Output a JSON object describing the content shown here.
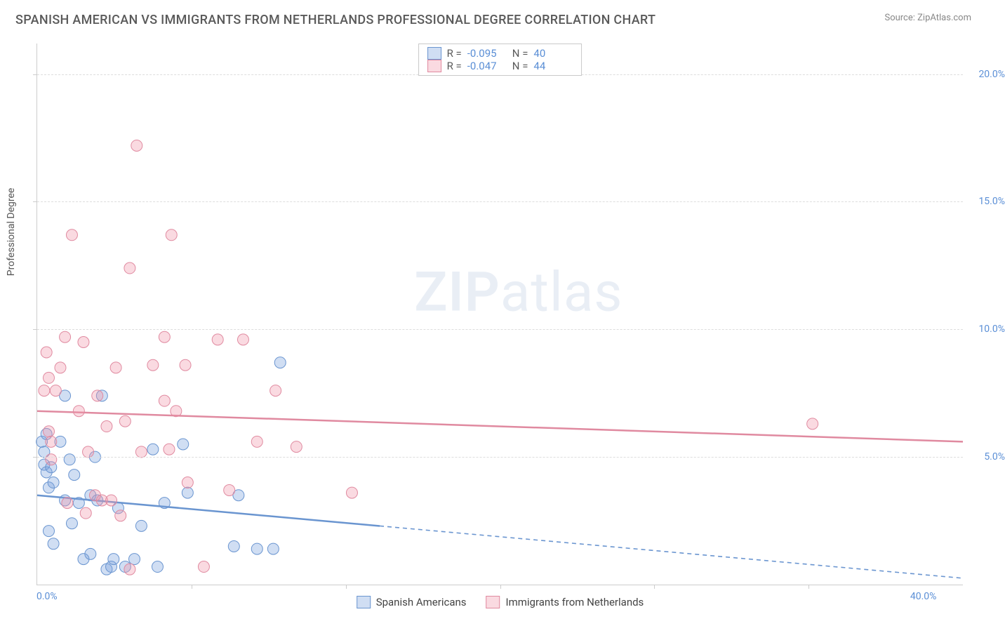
{
  "title": "SPANISH AMERICAN VS IMMIGRANTS FROM NETHERLANDS PROFESSIONAL DEGREE CORRELATION CHART",
  "source": "Source: ZipAtlas.com",
  "y_axis_label": "Professional Degree",
  "watermark_bold": "ZIP",
  "watermark_light": "atlas",
  "chart": {
    "type": "scatter",
    "xlim": [
      0,
      40
    ],
    "ylim": [
      0,
      21.2
    ],
    "x_ticks": [
      0,
      40
    ],
    "x_tick_labels": [
      "0.0%",
      "40.0%"
    ],
    "x_minor_ticks": [
      6.67,
      13.33,
      20,
      26.67,
      33.33
    ],
    "y_ticks": [
      5,
      10,
      15,
      20
    ],
    "y_tick_labels": [
      "5.0%",
      "10.0%",
      "15.0%",
      "20.0%"
    ],
    "y_minor_ticks": [
      0
    ],
    "grid_color": "#dddddd",
    "axis_color": "#cccccc",
    "background": "#ffffff",
    "series": [
      {
        "key": "spanish",
        "label": "Spanish Americans",
        "color_fill": "rgba(120,160,220,0.35)",
        "color_stroke": "#6a95d0",
        "marker_radius": 8,
        "trend": {
          "y_at_x0": 3.5,
          "y_at_xmax": 0.25,
          "solid_until_x": 14.8
        },
        "stats": {
          "R": "-0.095",
          "N": "40"
        },
        "points": [
          [
            0.2,
            5.6
          ],
          [
            0.3,
            5.2
          ],
          [
            0.3,
            4.7
          ],
          [
            0.4,
            4.4
          ],
          [
            0.4,
            5.9
          ],
          [
            0.5,
            3.8
          ],
          [
            0.6,
            4.6
          ],
          [
            0.5,
            2.1
          ],
          [
            0.7,
            4.0
          ],
          [
            0.7,
            1.6
          ],
          [
            1.0,
            5.6
          ],
          [
            1.2,
            7.4
          ],
          [
            1.2,
            3.3
          ],
          [
            1.4,
            4.9
          ],
          [
            1.5,
            2.4
          ],
          [
            1.6,
            4.3
          ],
          [
            1.8,
            3.2
          ],
          [
            2.0,
            1.0
          ],
          [
            2.3,
            1.2
          ],
          [
            2.3,
            3.5
          ],
          [
            2.5,
            5.0
          ],
          [
            2.6,
            3.3
          ],
          [
            3.0,
            0.6
          ],
          [
            3.2,
            0.7
          ],
          [
            3.3,
            1.0
          ],
          [
            3.5,
            3.0
          ],
          [
            3.8,
            0.7
          ],
          [
            4.2,
            1.0
          ],
          [
            4.5,
            2.3
          ],
          [
            5.0,
            5.3
          ],
          [
            5.2,
            0.7
          ],
          [
            5.5,
            3.2
          ],
          [
            6.3,
            5.5
          ],
          [
            6.5,
            3.6
          ],
          [
            8.5,
            1.5
          ],
          [
            8.7,
            3.5
          ],
          [
            9.5,
            1.4
          ],
          [
            10.2,
            1.4
          ],
          [
            10.5,
            8.7
          ],
          [
            2.8,
            7.4
          ]
        ]
      },
      {
        "key": "netherlands",
        "label": "Immigrants from Netherlands",
        "color_fill": "rgba(240,150,170,0.35)",
        "color_stroke": "#e08aa0",
        "marker_radius": 8,
        "trend": {
          "y_at_x0": 6.8,
          "y_at_xmax": 5.6,
          "solid_until_x": 40
        },
        "stats": {
          "R": "-0.047",
          "N": "44"
        },
        "points": [
          [
            0.3,
            7.6
          ],
          [
            0.4,
            9.1
          ],
          [
            0.5,
            6.0
          ],
          [
            0.5,
            8.1
          ],
          [
            0.6,
            5.6
          ],
          [
            0.6,
            4.9
          ],
          [
            0.8,
            7.6
          ],
          [
            1.0,
            8.5
          ],
          [
            1.2,
            9.7
          ],
          [
            1.5,
            13.7
          ],
          [
            1.8,
            6.8
          ],
          [
            2.0,
            9.5
          ],
          [
            2.2,
            5.2
          ],
          [
            2.5,
            3.5
          ],
          [
            2.6,
            7.4
          ],
          [
            2.8,
            3.3
          ],
          [
            3.0,
            6.2
          ],
          [
            3.2,
            3.3
          ],
          [
            3.4,
            8.5
          ],
          [
            3.8,
            6.4
          ],
          [
            4.0,
            12.4
          ],
          [
            4.3,
            17.2
          ],
          [
            4.5,
            5.2
          ],
          [
            5.0,
            8.6
          ],
          [
            5.5,
            9.7
          ],
          [
            5.5,
            7.2
          ],
          [
            5.7,
            5.3
          ],
          [
            5.8,
            13.7
          ],
          [
            6.0,
            6.8
          ],
          [
            6.4,
            8.6
          ],
          [
            6.5,
            4.0
          ],
          [
            7.2,
            0.7
          ],
          [
            7.8,
            9.6
          ],
          [
            8.3,
            3.7
          ],
          [
            8.9,
            9.6
          ],
          [
            9.5,
            5.6
          ],
          [
            10.3,
            7.6
          ],
          [
            11.2,
            5.4
          ],
          [
            13.6,
            3.6
          ],
          [
            1.3,
            3.2
          ],
          [
            2.1,
            2.8
          ],
          [
            3.6,
            2.7
          ],
          [
            4.0,
            0.6
          ],
          [
            33.5,
            6.3
          ]
        ]
      }
    ]
  },
  "legend_stats_labels": {
    "R": "R =",
    "N": "N ="
  }
}
